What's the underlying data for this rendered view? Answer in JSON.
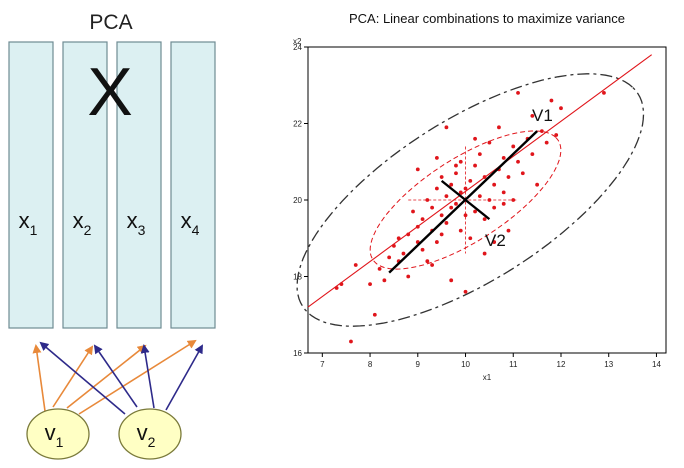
{
  "left_panel": {
    "title": "PCA",
    "matrix_symbol": "X",
    "columns": [
      {
        "base": "x",
        "sub": "1"
      },
      {
        "base": "x",
        "sub": "2"
      },
      {
        "base": "x",
        "sub": "3"
      },
      {
        "base": "x",
        "sub": "4"
      }
    ],
    "components": [
      {
        "base": "v",
        "sub": "1",
        "arrow_color": "#e8893a"
      },
      {
        "base": "v",
        "sub": "2",
        "arrow_color": "#2e2a8a"
      }
    ],
    "column_fill": "#dcf0f2",
    "component_fill": "#ffffc4"
  },
  "chart_data": {
    "type": "scatter",
    "title": "PCA: Linear combinations to maximize variance",
    "xlabel": "x1",
    "ylabel": "x2",
    "xlim": [
      6.7,
      14.2
    ],
    "ylim": [
      16,
      24
    ],
    "xticks": [
      7,
      8,
      9,
      10,
      11,
      12,
      13,
      14
    ],
    "yticks": [
      16,
      18,
      20,
      22,
      24
    ],
    "grid": false,
    "point_color": "#e0151b",
    "mean": [
      10.0,
      20.0
    ],
    "regression_line": {
      "from": [
        6.7,
        17.2
      ],
      "to": [
        13.9,
        23.8
      ]
    },
    "axis_labels": {
      "v1": "V1",
      "v2": "V2"
    },
    "pc1_segment": {
      "from": [
        8.4,
        18.1
      ],
      "to": [
        11.5,
        21.8
      ]
    },
    "pc2_segment": {
      "from": [
        9.5,
        20.5
      ],
      "to": [
        10.5,
        19.5
      ]
    },
    "ellipses": [
      {
        "name": "inner",
        "cx": 10.0,
        "cy": 20.0,
        "a": 2.5,
        "b": 1.0,
        "angle_deg": 41,
        "color": "#e0151b",
        "dash": "5,3"
      },
      {
        "name": "outer",
        "cx": 10.1,
        "cy": 20.0,
        "a": 4.5,
        "b": 1.95,
        "angle_deg": 41,
        "color": "#333333",
        "dash": "12,4,3,4"
      }
    ],
    "points": [
      [
        7.3,
        17.7
      ],
      [
        7.4,
        17.8
      ],
      [
        7.6,
        16.3
      ],
      [
        7.7,
        18.3
      ],
      [
        8.0,
        17.8
      ],
      [
        8.1,
        17.0
      ],
      [
        8.2,
        18.2
      ],
      [
        8.3,
        17.9
      ],
      [
        8.4,
        18.5
      ],
      [
        8.5,
        18.8
      ],
      [
        8.6,
        18.4
      ],
      [
        8.6,
        19.0
      ],
      [
        8.7,
        18.6
      ],
      [
        8.8,
        19.1
      ],
      [
        8.8,
        18.0
      ],
      [
        8.9,
        19.7
      ],
      [
        9.0,
        18.9
      ],
      [
        9.0,
        19.3
      ],
      [
        9.1,
        18.7
      ],
      [
        9.1,
        19.5
      ],
      [
        9.2,
        20.0
      ],
      [
        9.2,
        18.4
      ],
      [
        9.3,
        19.2
      ],
      [
        9.3,
        19.8
      ],
      [
        9.4,
        18.9
      ],
      [
        9.4,
        20.3
      ],
      [
        9.5,
        19.6
      ],
      [
        9.5,
        19.1
      ],
      [
        9.5,
        20.6
      ],
      [
        9.6,
        20.1
      ],
      [
        9.6,
        19.4
      ],
      [
        9.7,
        19.8
      ],
      [
        9.7,
        20.4
      ],
      [
        9.7,
        17.9
      ],
      [
        9.8,
        19.9
      ],
      [
        9.8,
        20.7
      ],
      [
        9.9,
        19.2
      ],
      [
        9.9,
        20.2
      ],
      [
        9.9,
        21.0
      ],
      [
        10.0,
        19.6
      ],
      [
        10.0,
        20.3
      ],
      [
        10.1,
        19.0
      ],
      [
        10.1,
        20.5
      ],
      [
        10.2,
        19.7
      ],
      [
        10.2,
        20.9
      ],
      [
        10.3,
        20.1
      ],
      [
        10.3,
        21.2
      ],
      [
        10.4,
        19.5
      ],
      [
        10.4,
        20.6
      ],
      [
        10.4,
        18.6
      ],
      [
        10.5,
        20.0
      ],
      [
        10.5,
        21.5
      ],
      [
        10.6,
        20.4
      ],
      [
        10.6,
        19.8
      ],
      [
        10.7,
        20.8
      ],
      [
        10.7,
        21.9
      ],
      [
        10.8,
        20.2
      ],
      [
        10.8,
        21.1
      ],
      [
        10.9,
        20.6
      ],
      [
        10.9,
        19.2
      ],
      [
        11.0,
        21.4
      ],
      [
        11.0,
        20.0
      ],
      [
        11.1,
        21.0
      ],
      [
        11.1,
        22.8
      ],
      [
        11.2,
        20.7
      ],
      [
        11.3,
        21.6
      ],
      [
        11.4,
        21.2
      ],
      [
        11.5,
        20.4
      ],
      [
        11.6,
        21.8
      ],
      [
        11.7,
        21.5
      ],
      [
        11.8,
        22.6
      ],
      [
        11.9,
        21.7
      ],
      [
        12.0,
        22.4
      ],
      [
        12.9,
        22.8
      ],
      [
        10.2,
        21.6
      ],
      [
        9.6,
        21.9
      ],
      [
        9.0,
        20.8
      ],
      [
        10.6,
        18.9
      ],
      [
        11.4,
        22.2
      ],
      [
        9.3,
        18.3
      ],
      [
        10.0,
        17.6
      ],
      [
        9.8,
        20.9
      ],
      [
        10.8,
        19.9
      ],
      [
        9.4,
        21.1
      ]
    ]
  }
}
